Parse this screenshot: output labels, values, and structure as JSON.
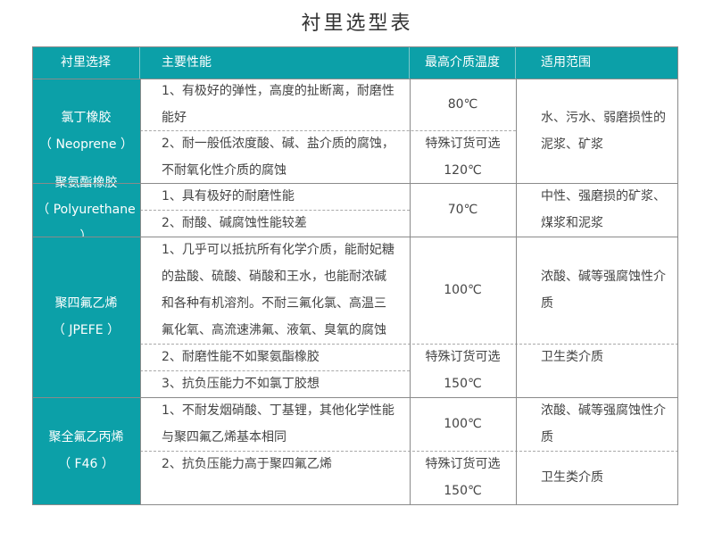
{
  "title": "衬里选型表",
  "header": {
    "lining": "衬里选择",
    "performance": "主要性能",
    "max_temp": "最高介质温度",
    "scope": "适用范围"
  },
  "colors": {
    "accent": "#0ca0a8"
  },
  "rows": [
    {
      "name": "氯丁橡胶",
      "name_en": "（ Neoprene ）",
      "perf": [
        [
          "1、有极好的弹性，高度的扯断离，耐磨性",
          "能好"
        ],
        [
          "2、耐一般低浓度酸、碱、盐介质的腐蚀，",
          "不耐氧化性介质的腐蚀"
        ]
      ],
      "temp": [
        "80℃",
        "特殊订货可选",
        "120℃"
      ],
      "scope": [
        "水、污水、弱磨损性的",
        "泥浆、矿浆"
      ]
    },
    {
      "name": "聚氨酯橡胶",
      "name_en": "（ Polyurethane ）",
      "perf": [
        "1、具有极好的耐磨性能",
        "2、耐酸、碱腐蚀性能较差"
      ],
      "temp": [
        "70℃"
      ],
      "scope": [
        "中性、强磨损的矿浆、",
        "煤浆和泥浆"
      ]
    },
    {
      "name": "聚四氟乙烯",
      "name_en": "（ JPEFE ）",
      "perf": [
        [
          "1、几乎可以抵抗所有化学介质，能耐妃糖",
          "的盐酸、硫酸、硝酸和王水，也能耐浓碱",
          "和各种有机溶剂。不耐三氟化氯、高温三",
          "氟化氧、高流速沸氟、液氧、臭氧的腐蚀"
        ],
        "2、耐磨性能不如聚氨酯橡胶",
        "3、抗负压能力不如氯丁胶想"
      ],
      "temp": [
        "100℃",
        "特殊订货可选",
        "150℃"
      ],
      "scope": [
        [
          "浓酸、碱等强腐蚀性介",
          "质"
        ],
        "卫生类介质"
      ]
    },
    {
      "name": "聚全氟乙丙烯",
      "name_en": "（ F46 ）",
      "perf": [
        [
          "1、不耐发烟硝酸、丁基锂，其他化学性能",
          "与聚四氟乙烯基本相同"
        ],
        "2、抗负压能力高于聚四氟乙烯"
      ],
      "temp": [
        "100℃",
        "特殊订货可选",
        "150℃"
      ],
      "scope": [
        [
          "浓酸、碱等强腐蚀性介",
          "质"
        ],
        "卫生类介质"
      ]
    }
  ]
}
